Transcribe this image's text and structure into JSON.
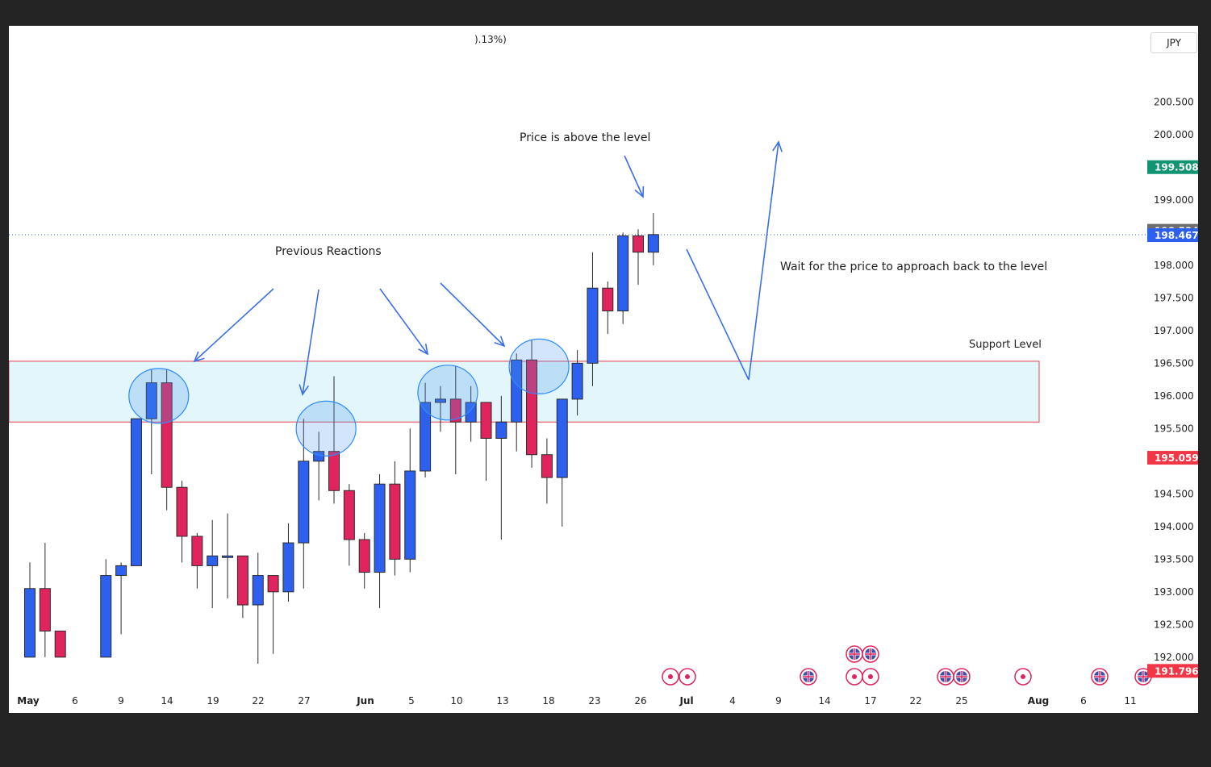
{
  "header": {
    "change_fragment": ").13%)"
  },
  "currency": "JPY",
  "colors": {
    "up": "#2d60ee",
    "down": "#e0245e",
    "zone_fill": "#e2f6fb",
    "zone_border": "#e8404f",
    "arrow": "#3b6fe8",
    "highlight": "#2e8bff",
    "green_tag": "#109472",
    "gray_tag": "#6e6e6e",
    "red_tag": "#f23645"
  },
  "price_tags": [
    {
      "value": "199.508",
      "color": "green"
    },
    {
      "value": "198.534",
      "color": "gray"
    },
    {
      "value": "198.467",
      "color": "blue"
    },
    {
      "value": "195.059",
      "color": "red"
    },
    {
      "value": "191.796",
      "color": "red"
    }
  ],
  "annotations": {
    "price_above": "Price is above the level",
    "previous_reactions": "Previous Reactions",
    "wait_for_price": "Wait for the price to approach back to the level",
    "support_level": "Support Level"
  },
  "event_icons": [
    {
      "date_label": "Jul",
      "type": "target",
      "count": 2
    },
    {
      "date_label": "13",
      "type": "uk-flag",
      "count": 1
    },
    {
      "date_label": "17",
      "type": "uk-flag",
      "count": 2
    },
    {
      "date_label": "17",
      "type": "target",
      "count": 2
    },
    {
      "date_label": "24",
      "type": "uk-flag",
      "count": 2
    },
    {
      "date_label": "Aug",
      "type": "target",
      "count": 1
    },
    {
      "date_label": "6",
      "type": "uk-flag",
      "count": 1
    },
    {
      "date_label": "11",
      "type": "uk-flag",
      "count": 1
    }
  ],
  "chart_data": {
    "type": "candlestick",
    "y_ticks": [
      "200.500",
      "200.000",
      "199.000",
      "198.000",
      "197.500",
      "197.000",
      "196.500",
      "196.000",
      "195.500",
      "194.500",
      "194.000",
      "193.500",
      "193.000",
      "192.500",
      "192.000"
    ],
    "ylim": [
      191.8,
      200.9
    ],
    "x_ticks": [
      "May",
      "6",
      "9",
      "14",
      "19",
      "22",
      "27",
      "Jun",
      "5",
      "10",
      "13",
      "18",
      "23",
      "26",
      "Jul",
      "4",
      "9",
      "14",
      "17",
      "22",
      "25",
      "Aug",
      "6",
      "11"
    ],
    "support_zone": [
      195.6,
      196.53
    ],
    "last_price_line": 198.467,
    "candles": [
      {
        "o": 192.0,
        "h": 193.45,
        "l": 192.0,
        "c": 193.05
      },
      {
        "o": 193.05,
        "h": 193.75,
        "l": 192.0,
        "c": 192.4
      },
      {
        "o": 192.4,
        "h": 192.4,
        "l": 192.0,
        "c": 192.0
      },
      null,
      null,
      {
        "o": 192.0,
        "h": 193.5,
        "l": 192.0,
        "c": 193.25
      },
      {
        "o": 193.25,
        "h": 193.45,
        "l": 192.35,
        "c": 193.4
      },
      {
        "o": 193.4,
        "h": 195.65,
        "l": 193.4,
        "c": 195.65
      },
      {
        "o": 195.65,
        "h": 196.4,
        "l": 194.8,
        "c": 196.2
      },
      {
        "o": 196.2,
        "h": 196.4,
        "l": 194.25,
        "c": 194.6
      },
      {
        "o": 194.6,
        "h": 194.7,
        "l": 193.45,
        "c": 193.85
      },
      {
        "o": 193.85,
        "h": 193.9,
        "l": 193.05,
        "c": 193.4
      },
      {
        "o": 193.4,
        "h": 194.1,
        "l": 192.75,
        "c": 193.55
      },
      {
        "o": 193.55,
        "h": 194.2,
        "l": 192.9,
        "c": 193.55
      },
      {
        "o": 193.55,
        "h": 193.55,
        "l": 192.6,
        "c": 192.8
      },
      {
        "o": 192.8,
        "h": 193.6,
        "l": 191.9,
        "c": 193.25
      },
      {
        "o": 193.25,
        "h": 193.25,
        "l": 192.05,
        "c": 193.0
      },
      {
        "o": 193.0,
        "h": 194.05,
        "l": 192.85,
        "c": 193.75
      },
      {
        "o": 193.75,
        "h": 195.65,
        "l": 193.05,
        "c": 195.0
      },
      {
        "o": 195.0,
        "h": 195.45,
        "l": 194.4,
        "c": 195.15
      },
      {
        "o": 195.15,
        "h": 196.3,
        "l": 194.35,
        "c": 194.55
      },
      {
        "o": 194.55,
        "h": 194.65,
        "l": 193.4,
        "c": 193.8
      },
      {
        "o": 193.8,
        "h": 193.9,
        "l": 193.05,
        "c": 193.3
      },
      {
        "o": 193.3,
        "h": 194.8,
        "l": 192.75,
        "c": 194.65
      },
      {
        "o": 194.65,
        "h": 195.0,
        "l": 193.25,
        "c": 193.5
      },
      {
        "o": 193.5,
        "h": 195.5,
        "l": 193.3,
        "c": 194.85
      },
      {
        "o": 194.85,
        "h": 196.2,
        "l": 194.75,
        "c": 195.9
      },
      {
        "o": 195.9,
        "h": 196.15,
        "l": 195.45,
        "c": 195.95
      },
      {
        "o": 195.95,
        "h": 196.45,
        "l": 194.8,
        "c": 195.6
      },
      {
        "o": 195.6,
        "h": 196.15,
        "l": 195.3,
        "c": 195.9
      },
      {
        "o": 195.9,
        "h": 195.9,
        "l": 194.7,
        "c": 195.35
      },
      {
        "o": 195.35,
        "h": 196.0,
        "l": 193.8,
        "c": 195.6
      },
      {
        "o": 195.6,
        "h": 196.65,
        "l": 195.15,
        "c": 196.55
      },
      {
        "o": 196.55,
        "h": 196.85,
        "l": 194.9,
        "c": 195.1
      },
      {
        "o": 195.1,
        "h": 195.35,
        "l": 194.35,
        "c": 194.75
      },
      {
        "o": 194.75,
        "h": 195.95,
        "l": 194.0,
        "c": 195.95
      },
      {
        "o": 195.95,
        "h": 196.7,
        "l": 195.7,
        "c": 196.5
      },
      {
        "o": 196.5,
        "h": 198.2,
        "l": 196.15,
        "c": 197.65
      },
      {
        "o": 197.65,
        "h": 197.75,
        "l": 196.95,
        "c": 197.3
      },
      {
        "o": 197.3,
        "h": 198.5,
        "l": 197.1,
        "c": 198.45
      },
      {
        "o": 198.45,
        "h": 198.55,
        "l": 197.7,
        "c": 198.2
      },
      {
        "o": 198.2,
        "h": 198.8,
        "l": 198.0,
        "c": 198.47
      }
    ]
  }
}
